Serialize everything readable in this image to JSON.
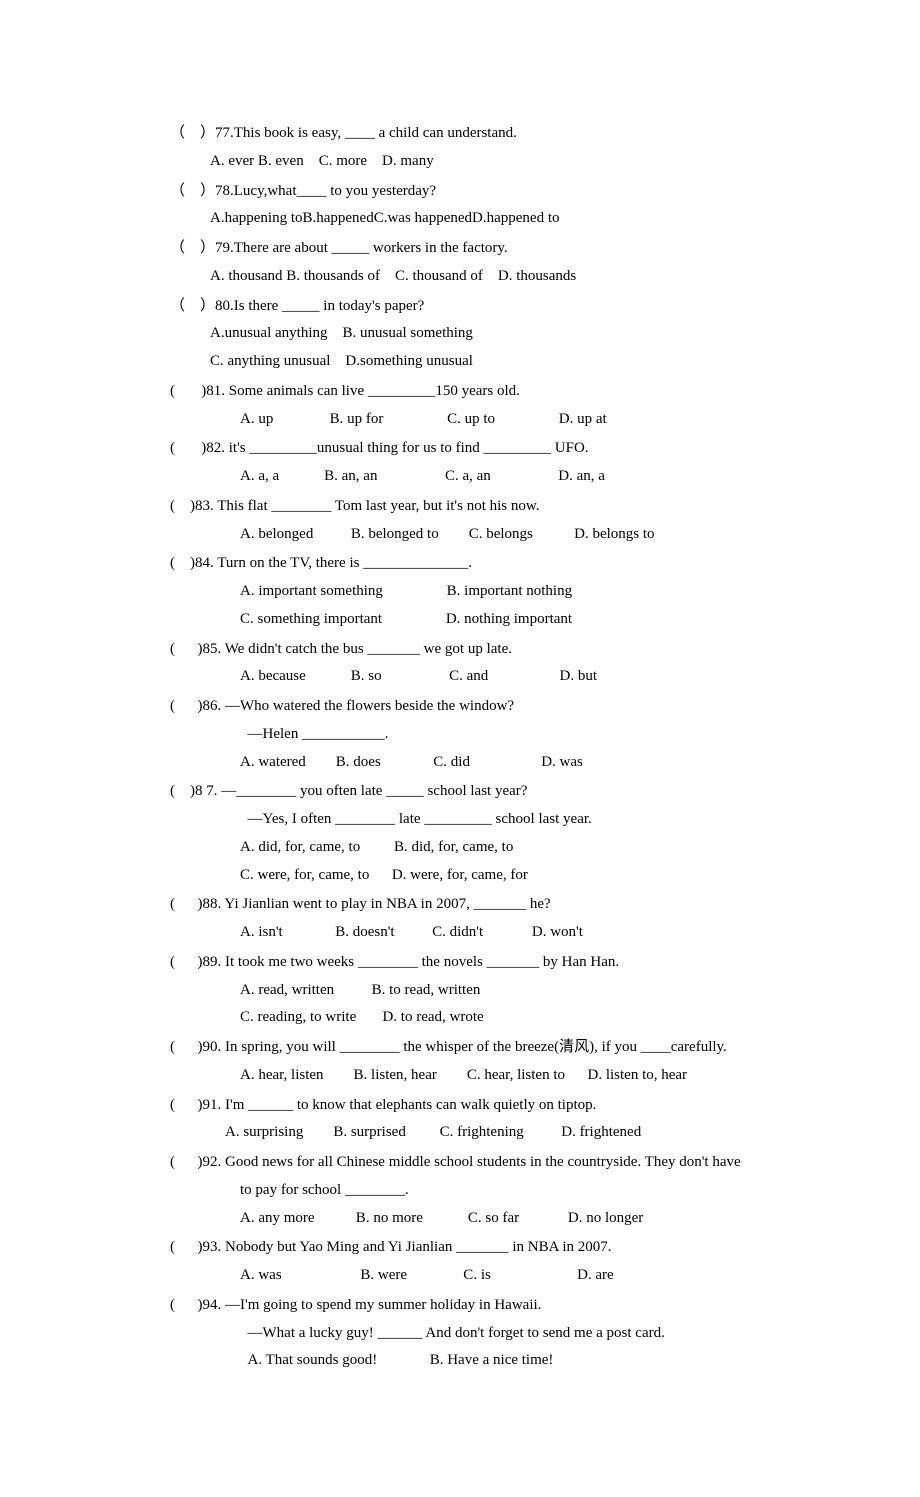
{
  "questions": [
    {
      "num": "77",
      "bracket": "（    ）",
      "stem": "This book is easy, ____ a child can understand.",
      "optionLines": [
        "A. ever B. even    C. more    D. many"
      ],
      "indent": "indent1"
    },
    {
      "num": "78",
      "bracket": "（    ）",
      "stem": "Lucy,what____ to you yesterday?",
      "optionLines": [
        "A.happening toB.happenedC.was happenedD.happened to"
      ],
      "indent": "indent1"
    },
    {
      "num": "79",
      "bracket": "（    ）",
      "stem": "There are about _____ workers in the factory.",
      "optionLines": [
        "A. thousand B. thousands of    C. thousand of    D. thousands"
      ],
      "indent": "indent1"
    },
    {
      "num": "80",
      "bracket": "（    ）",
      "stem": "Is there _____ in today's paper?",
      "optionLines": [
        "A.unusual anything    B. unusual something",
        "C. anything unusual    D.something unusual"
      ],
      "indent": "indent1"
    },
    {
      "num": "81",
      "bracket": "(       )",
      "stem": " Some animals can live _________150 years old.",
      "optionLines": [
        "A. up               B. up for                 C. up to                 D. up at"
      ],
      "indent": "indent2"
    },
    {
      "num": "82",
      "bracket": "(       )",
      "stem": " it's _________unusual thing for us to find _________ UFO.",
      "optionLines": [
        "A. a, a            B. an, an                  C. a, an                  D. an, a"
      ],
      "indent": "indent2"
    },
    {
      "num": "83",
      "bracket": "(    )",
      "stem": " This flat ________ Tom last year, but it's not his now.",
      "optionLines": [
        "A. belonged          B. belonged to        C. belongs           D. belongs to"
      ],
      "indent": "indent2"
    },
    {
      "num": "84",
      "bracket": "(    )",
      "stem": " Turn on the TV, there is ______________.",
      "optionLines": [
        "A. important something                 B. important nothing",
        "C. something important                 D. nothing important"
      ],
      "indent": "indent2"
    },
    {
      "num": "85",
      "bracket": "(      )",
      "stem": " We didn't catch the bus _______ we got up late.",
      "optionLines": [
        "A. because            B. so                  C. and                   D. but"
      ],
      "indent": "indent2"
    },
    {
      "num": "86",
      "bracket": "(      )",
      "stem": " —Who watered the flowers beside the window?",
      "extraLines": [
        "  —Helen ___________."
      ],
      "optionLines": [
        "A. watered        B. does              C. did                   D. was"
      ],
      "indent": "indent2"
    },
    {
      "num": "8 7",
      "bracket": "(    )",
      "stem": " —________ you often late _____ school last year?",
      "extraLines": [
        "  —Yes, I often ________ late _________ school last year."
      ],
      "optionLines": [
        "A. did, for, came, to         B. did, for, came, to",
        "C. were, for, came, to      D. were, for, came, for"
      ],
      "indent": "indent2"
    },
    {
      "num": "88",
      "bracket": "(      )",
      "stem": " Yi Jianlian went to play in NBA in 2007, _______ he?",
      "optionLines": [
        "A. isn't              B. doesn't          C. didn't             D. won't"
      ],
      "indent": "indent2"
    },
    {
      "num": "89",
      "bracket": "(      )",
      "stem": " It took me two weeks ________ the novels _______ by Han Han.",
      "optionLines": [
        "A. read, written          B. to read, written",
        "C. reading, to write       D. to read, wrote"
      ],
      "indent": "indent2"
    },
    {
      "num": "90",
      "bracket": "(      )",
      "stem": " In spring, you will ________ the whisper of the breeze(清风), if you ____carefully.",
      "optionLines": [
        "A. hear, listen        B. listen, hear        C. hear, listen to      D. listen to, hear"
      ],
      "indent": "indent2"
    },
    {
      "num": "91",
      "bracket": "(      )",
      "stem": " I'm ______ to know that elephants can walk quietly on tiptop.",
      "optionLines": [
        "A. surprising        B. surprised         C. frightening          D. frightened"
      ],
      "indent": "indent3"
    },
    {
      "num": "92",
      "bracket": "(      )",
      "stem": " Good news for all Chinese middle school students in the countryside. They don't have",
      "extraLines": [
        "to pay for school ________."
      ],
      "optionLines": [
        "A. any more           B. no more            C. so far             D. no longer"
      ],
      "indent": "indent2"
    },
    {
      "num": "93",
      "bracket": "(      )",
      "stem": " Nobody but Yao Ming and Yi Jianlian _______ in NBA in 2007.",
      "optionLines": [
        "A. was                     B. were               C. is                       D. are"
      ],
      "indent": "indent2"
    },
    {
      "num": "94",
      "bracket": "(      )",
      "stem": " —I'm going to spend my summer holiday in Hawaii.",
      "extraLines": [
        "  —What a lucky guy! ______ And don't forget to send me a post card."
      ],
      "optionLines": [
        "  A. That sounds good!              B. Have a nice time!"
      ],
      "indent": "indent2"
    }
  ]
}
